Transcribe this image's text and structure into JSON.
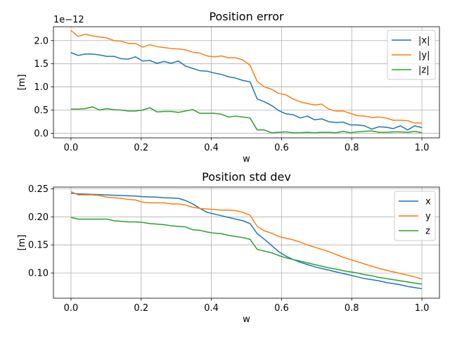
{
  "chart_data": [
    {
      "type": "line",
      "title": "Position error",
      "xlabel": "w",
      "ylabel": "[m]",
      "y_offset_label": "1e−12",
      "xlim": [
        -0.05,
        1.05
      ],
      "ylim": [
        -0.1,
        2.3
      ],
      "xticks": [
        "0.0",
        "0.2",
        "0.4",
        "0.6",
        "0.8",
        "1.0"
      ],
      "yticks": [
        "0.0",
        "0.5",
        "1.0",
        "1.5",
        "2.0"
      ],
      "ytick_values": [
        0.0,
        0.5,
        1.0,
        1.5,
        2.0
      ],
      "grid": true,
      "legend_position": "upper-right",
      "x": [
        0.0,
        0.0204,
        0.0408,
        0.0612,
        0.0816,
        0.102,
        0.1224,
        0.1429,
        0.1633,
        0.1837,
        0.2041,
        0.2245,
        0.2449,
        0.2653,
        0.2857,
        0.3061,
        0.3265,
        0.3469,
        0.3673,
        0.3878,
        0.4082,
        0.4286,
        0.449,
        0.4694,
        0.4898,
        0.5102,
        0.5306,
        0.551,
        0.5714,
        0.5918,
        0.6122,
        0.6327,
        0.6531,
        0.6735,
        0.6939,
        0.7143,
        0.7347,
        0.7551,
        0.7755,
        0.7959,
        0.8163,
        0.8367,
        0.8571,
        0.8776,
        0.898,
        0.9184,
        0.9388,
        0.9592,
        0.9796,
        1.0
      ],
      "series": [
        {
          "name": "|x|",
          "color": "#1f77b4",
          "values": [
            1.74,
            1.68,
            1.71,
            1.71,
            1.69,
            1.66,
            1.66,
            1.61,
            1.6,
            1.65,
            1.56,
            1.57,
            1.51,
            1.55,
            1.51,
            1.56,
            1.45,
            1.4,
            1.35,
            1.34,
            1.3,
            1.27,
            1.22,
            1.19,
            1.14,
            1.11,
            0.74,
            0.68,
            0.6,
            0.49,
            0.42,
            0.4,
            0.33,
            0.37,
            0.29,
            0.31,
            0.25,
            0.23,
            0.24,
            0.18,
            0.18,
            0.16,
            0.09,
            0.14,
            0.13,
            0.1,
            0.16,
            0.07,
            0.16,
            0.12
          ]
        },
        {
          "name": "|y|",
          "color": "#ff7f0e",
          "values": [
            2.22,
            2.09,
            2.14,
            2.1,
            2.08,
            2.06,
            2.0,
            1.99,
            1.94,
            1.94,
            1.86,
            1.91,
            1.87,
            1.85,
            1.83,
            1.82,
            1.8,
            1.75,
            1.73,
            1.67,
            1.65,
            1.67,
            1.63,
            1.63,
            1.58,
            1.47,
            1.12,
            1.0,
            0.95,
            0.86,
            0.83,
            0.74,
            0.68,
            0.64,
            0.61,
            0.63,
            0.52,
            0.48,
            0.48,
            0.43,
            0.38,
            0.37,
            0.34,
            0.35,
            0.33,
            0.28,
            0.28,
            0.27,
            0.22,
            0.22
          ]
        },
        {
          "name": "|z|",
          "color": "#2ca02c",
          "values": [
            0.52,
            0.52,
            0.53,
            0.57,
            0.5,
            0.53,
            0.51,
            0.5,
            0.48,
            0.48,
            0.5,
            0.55,
            0.46,
            0.47,
            0.47,
            0.45,
            0.48,
            0.51,
            0.43,
            0.43,
            0.43,
            0.41,
            0.35,
            0.37,
            0.35,
            0.33,
            0.07,
            0.07,
            0.01,
            0.02,
            0.03,
            0.01,
            0.01,
            0.02,
            0.01,
            0.02,
            0.02,
            0.01,
            0.04,
            0.01,
            0.03,
            0.04,
            0.05,
            0.02,
            0.02,
            0.03,
            0.03,
            0.02,
            0.04,
            0.01
          ]
        }
      ]
    },
    {
      "type": "line",
      "title": "Position std dev",
      "xlabel": "w",
      "ylabel": "[m]",
      "xlim": [
        -0.05,
        1.05
      ],
      "ylim": [
        0.055,
        0.253
      ],
      "xticks": [
        "0.0",
        "0.2",
        "0.4",
        "0.6",
        "0.8",
        "1.0"
      ],
      "yticks": [
        "0.10",
        "0.15",
        "0.20",
        "0.25"
      ],
      "ytick_values": [
        0.1,
        0.15,
        0.2,
        0.25
      ],
      "grid": true,
      "legend_position": "upper-right",
      "x": [
        0.0,
        0.0204,
        0.0408,
        0.0612,
        0.0816,
        0.102,
        0.1224,
        0.1429,
        0.1633,
        0.1837,
        0.2041,
        0.2245,
        0.2449,
        0.2653,
        0.2857,
        0.3061,
        0.3265,
        0.3469,
        0.3673,
        0.3878,
        0.4082,
        0.4286,
        0.449,
        0.4694,
        0.4898,
        0.5102,
        0.5306,
        0.551,
        0.5714,
        0.5918,
        0.6122,
        0.6327,
        0.6531,
        0.6735,
        0.6939,
        0.7143,
        0.7347,
        0.7551,
        0.7755,
        0.7959,
        0.8163,
        0.8367,
        0.8571,
        0.8776,
        0.898,
        0.9184,
        0.9388,
        0.9592,
        0.9796,
        1.0
      ],
      "series": [
        {
          "name": "x",
          "color": "#1f77b4",
          "values": [
            0.242,
            0.241,
            0.2405,
            0.24,
            0.2395,
            0.239,
            0.2385,
            0.238,
            0.2375,
            0.237,
            0.236,
            0.2355,
            0.235,
            0.234,
            0.2335,
            0.233,
            0.229,
            0.223,
            0.215,
            0.208,
            0.205,
            0.202,
            0.199,
            0.196,
            0.193,
            0.188,
            0.17,
            0.16,
            0.149,
            0.138,
            0.13,
            0.124,
            0.119,
            0.115,
            0.111,
            0.108,
            0.105,
            0.102,
            0.099,
            0.096,
            0.093,
            0.09,
            0.088,
            0.086,
            0.083,
            0.081,
            0.079,
            0.076,
            0.074,
            0.072
          ]
        },
        {
          "name": "y",
          "color": "#ff7f0e",
          "values": [
            0.245,
            0.239,
            0.239,
            0.239,
            0.238,
            0.235,
            0.234,
            0.233,
            0.231,
            0.23,
            0.226,
            0.225,
            0.225,
            0.225,
            0.223,
            0.223,
            0.221,
            0.217,
            0.215,
            0.214,
            0.213,
            0.212,
            0.212,
            0.211,
            0.208,
            0.203,
            0.183,
            0.175,
            0.171,
            0.165,
            0.162,
            0.159,
            0.155,
            0.15,
            0.146,
            0.142,
            0.138,
            0.133,
            0.128,
            0.124,
            0.12,
            0.116,
            0.112,
            0.108,
            0.105,
            0.102,
            0.099,
            0.096,
            0.093,
            0.089
          ]
        },
        {
          "name": "z",
          "color": "#2ca02c",
          "values": [
            0.199,
            0.196,
            0.196,
            0.196,
            0.196,
            0.196,
            0.193,
            0.192,
            0.191,
            0.191,
            0.19,
            0.188,
            0.187,
            0.186,
            0.184,
            0.183,
            0.182,
            0.177,
            0.176,
            0.173,
            0.171,
            0.17,
            0.167,
            0.165,
            0.163,
            0.16,
            0.142,
            0.139,
            0.136,
            0.131,
            0.127,
            0.124,
            0.121,
            0.118,
            0.115,
            0.112,
            0.109,
            0.107,
            0.104,
            0.102,
            0.1,
            0.097,
            0.095,
            0.092,
            0.09,
            0.088,
            0.086,
            0.084,
            0.082,
            0.08
          ]
        }
      ]
    }
  ]
}
